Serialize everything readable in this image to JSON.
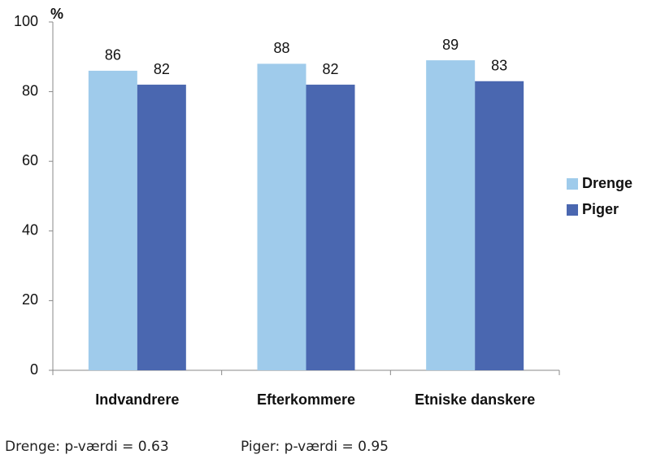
{
  "chart_data": {
    "type": "bar",
    "y_label": "%",
    "categories": [
      "Indvandrere",
      "Efterkommere",
      "Etniske danskere"
    ],
    "series": [
      {
        "name": "Drenge",
        "color": "#9fcbeb",
        "values": [
          86,
          88,
          89
        ]
      },
      {
        "name": "Piger",
        "color": "#4a67b0",
        "values": [
          82,
          82,
          83
        ]
      }
    ],
    "ylim": [
      0,
      100
    ],
    "yticks": [
      0,
      20,
      40,
      60,
      80,
      100
    ],
    "grid": false,
    "legend": "right",
    "annotations": [
      "Drenge: p-værdi = 0.63",
      "Piger: p-værdi = 0.95"
    ]
  }
}
